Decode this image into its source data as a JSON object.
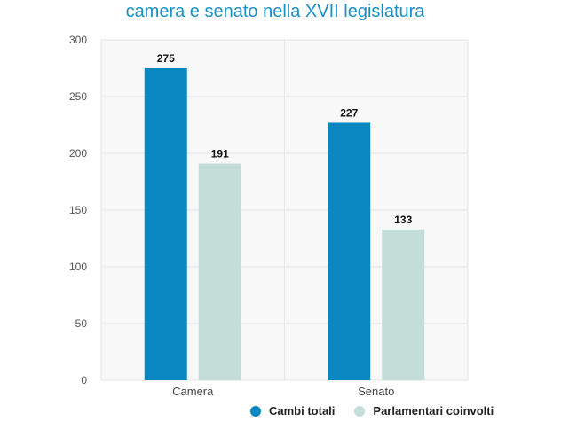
{
  "title": "camera e senato nella XVII legislatura",
  "colors": {
    "series_0": "#0a87c0",
    "series_1": "#c5ddd8",
    "title": "#1a8fc4"
  },
  "chart_data": {
    "type": "bar",
    "title": "camera e senato nella XVII legislatura",
    "categories": [
      "Camera",
      "Senato"
    ],
    "series": [
      {
        "name": "Cambi totali",
        "values": [
          275,
          227
        ]
      },
      {
        "name": "Parlamentari coinvolti",
        "values": [
          191,
          133
        ]
      }
    ],
    "ylim": [
      0,
      300
    ],
    "yticks": [
      "0",
      "50",
      "100",
      "150",
      "200",
      "250",
      "300"
    ],
    "xlabel": "",
    "ylabel": "",
    "grid": true,
    "legend": "bottom",
    "data_labels": true
  }
}
